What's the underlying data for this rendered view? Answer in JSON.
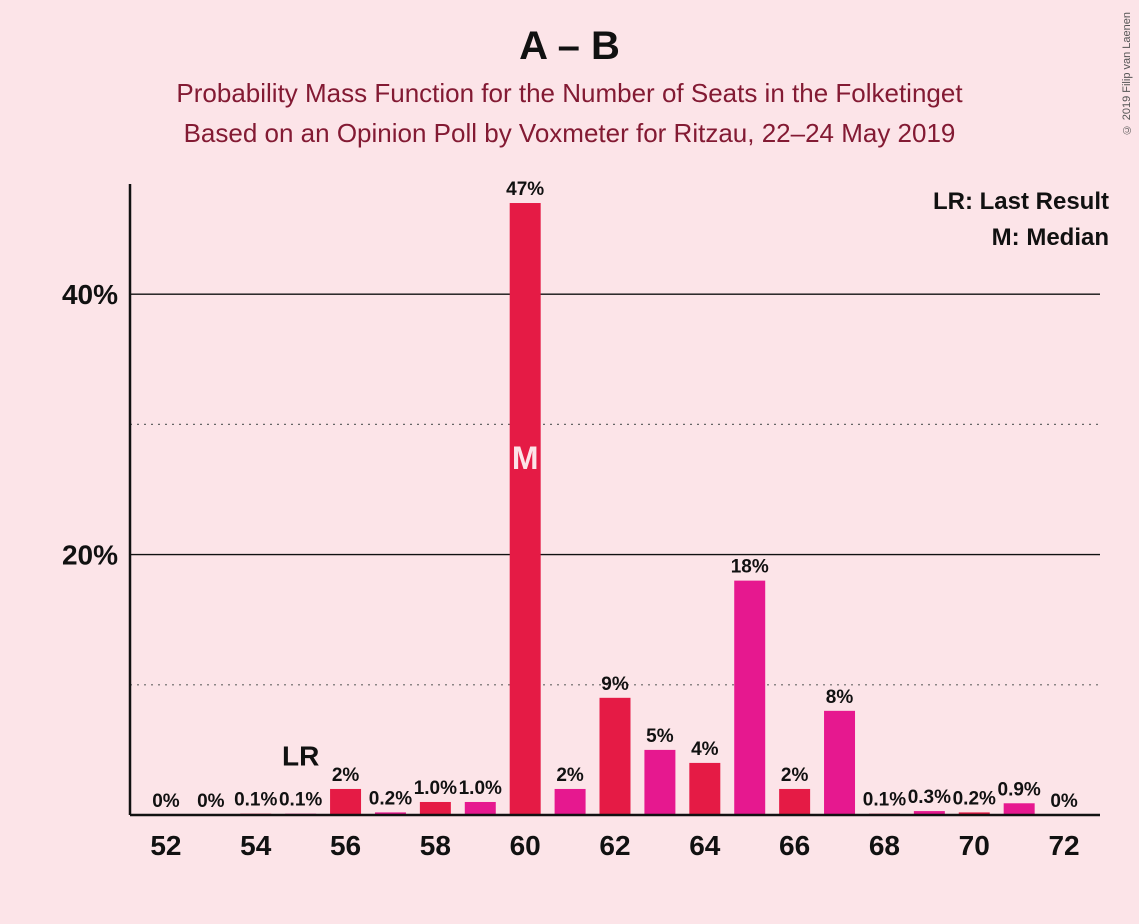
{
  "title": "A – B",
  "subtitle_line1": "Probability Mass Function for the Number of Seats in the Folketinget",
  "subtitle_line2": "Based on an Opinion Poll by Voxmeter for Ritzau, 22–24 May 2019",
  "legend": {
    "lr": "LR: Last Result",
    "m": "M: Median"
  },
  "lr_marker": "LR",
  "median_marker": "M",
  "copyright": "© 2019 Filip van Laenen",
  "chart": {
    "type": "bar",
    "background_color": "#fce4e8",
    "axis_color": "#111111",
    "grid_solid_color": "#111111",
    "grid_dotted_color": "#666666",
    "text_color": "#111111",
    "median_text_color": "#fce4e8",
    "colors": {
      "primary": "#e51b45",
      "secondary": "#e6188f"
    },
    "x_ticks": [
      52,
      54,
      56,
      58,
      60,
      62,
      64,
      66,
      68,
      70,
      72
    ],
    "y_ticks_major": [
      20,
      40
    ],
    "y_ticks_minor": [
      10,
      30
    ],
    "ylim": [
      0,
      48
    ],
    "xlim": [
      51.2,
      72.8
    ],
    "tick_fontsize": 28,
    "bar_label_fontsize": 19,
    "lr_fontsize": 28,
    "median_fontsize": 32,
    "bar_width": 0.69,
    "lr_x": 55,
    "bars": [
      {
        "x": 52,
        "v": 0,
        "label": "0%",
        "c": "primary"
      },
      {
        "x": 53,
        "v": 0,
        "label": "0%",
        "c": "secondary"
      },
      {
        "x": 54,
        "v": 0.1,
        "label": "0.1%",
        "c": "primary"
      },
      {
        "x": 55,
        "v": 0.1,
        "label": "0.1%",
        "c": "secondary"
      },
      {
        "x": 56,
        "v": 2,
        "label": "2%",
        "c": "primary"
      },
      {
        "x": 57,
        "v": 0.2,
        "label": "0.2%",
        "c": "secondary"
      },
      {
        "x": 58,
        "v": 1.0,
        "label": "1.0%",
        "c": "primary"
      },
      {
        "x": 59,
        "v": 1.0,
        "label": "1.0%",
        "c": "secondary"
      },
      {
        "x": 60,
        "v": 47,
        "label": "47%",
        "c": "primary",
        "median": true
      },
      {
        "x": 61,
        "v": 2,
        "label": "2%",
        "c": "secondary"
      },
      {
        "x": 62,
        "v": 9,
        "label": "9%",
        "c": "primary"
      },
      {
        "x": 63,
        "v": 5,
        "label": "5%",
        "c": "secondary"
      },
      {
        "x": 64,
        "v": 4,
        "label": "4%",
        "c": "primary"
      },
      {
        "x": 65,
        "v": 18,
        "label": "18%",
        "c": "secondary"
      },
      {
        "x": 66,
        "v": 2,
        "label": "2%",
        "c": "primary"
      },
      {
        "x": 67,
        "v": 8,
        "label": "8%",
        "c": "secondary"
      },
      {
        "x": 68,
        "v": 0.1,
        "label": "0.1%",
        "c": "primary"
      },
      {
        "x": 69,
        "v": 0.3,
        "label": "0.3%",
        "c": "secondary"
      },
      {
        "x": 70,
        "v": 0.2,
        "label": "0.2%",
        "c": "primary"
      },
      {
        "x": 71,
        "v": 0.9,
        "label": "0.9%",
        "c": "secondary"
      },
      {
        "x": 72,
        "v": 0,
        "label": "0%",
        "c": "primary"
      }
    ]
  }
}
